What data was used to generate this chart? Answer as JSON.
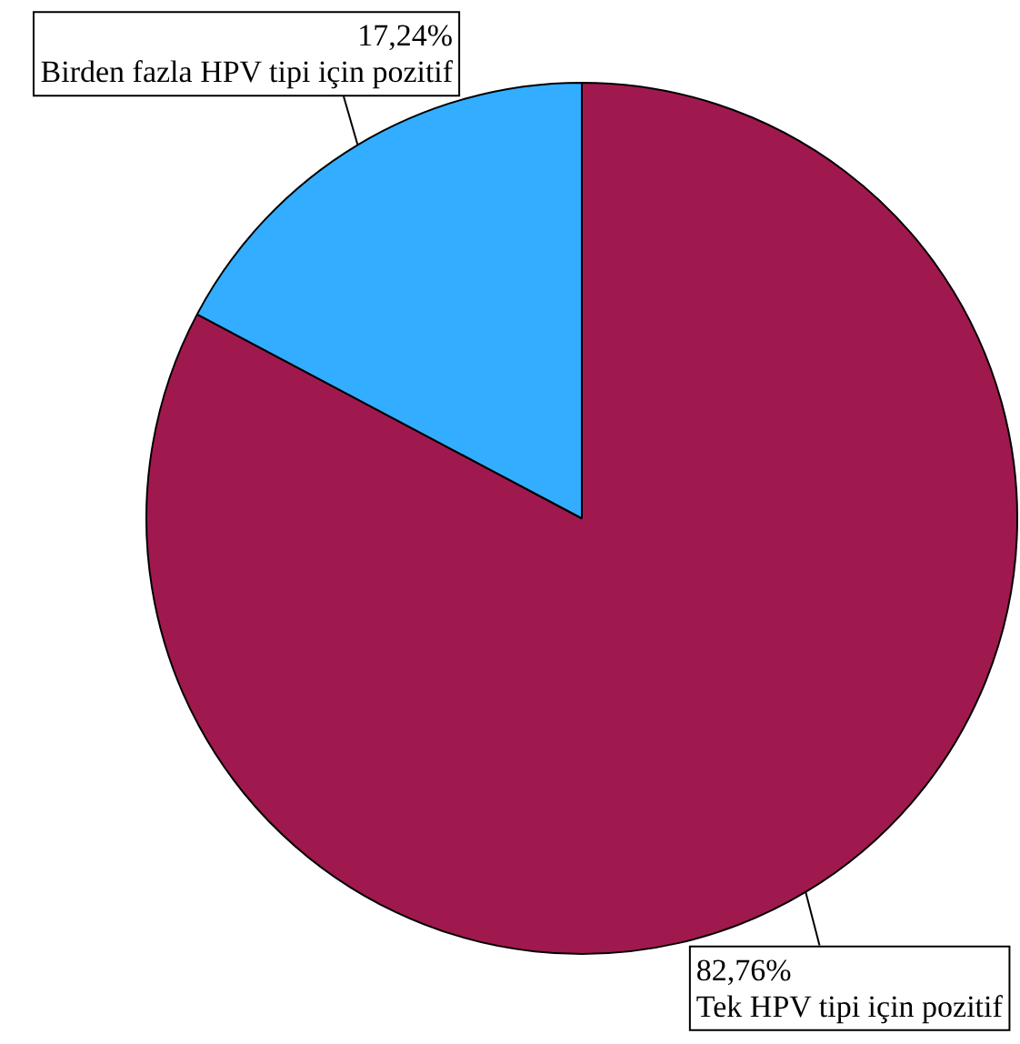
{
  "chart_data": {
    "type": "pie",
    "categories": [
      "Tek HPV tipi için pozitif",
      "Birden fazla HPV tipi için pozitif"
    ],
    "values": [
      82.76,
      17.24
    ],
    "colors": [
      "#a0194e",
      "#33adff"
    ],
    "value_labels": [
      "82,76%",
      "17,24%"
    ]
  }
}
